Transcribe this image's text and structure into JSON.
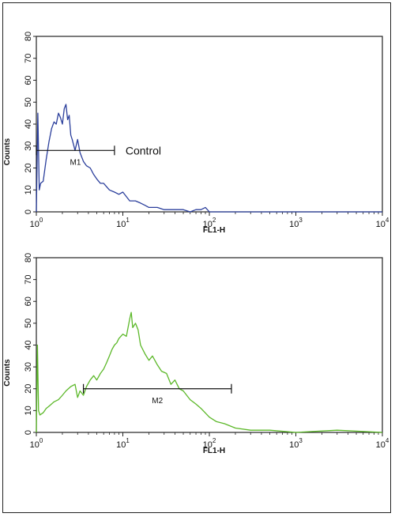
{
  "chart_data": [
    {
      "type": "line",
      "ylabel": "Counts",
      "xlabel": "FL1-H",
      "xscale": "log",
      "xlim": [
        1,
        10000
      ],
      "ylim": [
        0,
        80
      ],
      "xticks": [
        {
          "base": "10",
          "exp": "0"
        },
        {
          "base": "10",
          "exp": "1"
        },
        {
          "base": "10",
          "exp": "2"
        },
        {
          "base": "10",
          "exp": "3"
        },
        {
          "base": "10",
          "exp": "4"
        }
      ],
      "yticks": [
        "0",
        "10",
        "20",
        "30",
        "40",
        "50",
        "60",
        "70",
        "80"
      ],
      "color": "#2b3f9c",
      "series": [
        {
          "x": [
            1.0,
            1.04,
            1.08,
            1.12,
            1.2,
            1.3,
            1.4,
            1.5,
            1.6,
            1.7,
            1.8,
            1.9,
            2.0,
            2.1,
            2.2,
            2.3,
            2.4,
            2.5,
            2.6,
            2.8,
            3.0,
            3.2,
            3.5,
            3.8,
            4.2,
            4.6,
            5.0,
            5.5,
            6.0,
            7.0,
            8.0,
            9.0,
            10,
            12,
            14,
            16,
            18,
            20,
            25,
            30,
            40,
            50,
            60,
            70,
            80,
            90,
            100,
            150,
            200,
            500,
            1000,
            10000
          ],
          "y": [
            0,
            45,
            10,
            13,
            14,
            24,
            32,
            38,
            41,
            40,
            45,
            43,
            40,
            47,
            49,
            42,
            44,
            35,
            33,
            28,
            33,
            27,
            23,
            21,
            20,
            17,
            15,
            13,
            13,
            10,
            9,
            8,
            9,
            5,
            5,
            4,
            3,
            2,
            2,
            1,
            1,
            1,
            0,
            1,
            1,
            2,
            0,
            0,
            0,
            0,
            0,
            0
          ]
        }
      ],
      "marker": {
        "label": "M1",
        "x_start": 1.0,
        "x_end": 8.0,
        "y": 28
      },
      "annotation": "Control"
    },
    {
      "type": "line",
      "ylabel": "Counts",
      "xlabel": "FL1-H",
      "xscale": "log",
      "xlim": [
        1,
        10000
      ],
      "ylim": [
        0,
        80
      ],
      "xticks": [
        {
          "base": "10",
          "exp": "0"
        },
        {
          "base": "10",
          "exp": "1"
        },
        {
          "base": "10",
          "exp": "2"
        },
        {
          "base": "10",
          "exp": "3"
        },
        {
          "base": "10",
          "exp": "4"
        }
      ],
      "yticks": [
        "0",
        "10",
        "20",
        "30",
        "40",
        "50",
        "60",
        "70",
        "80"
      ],
      "color": "#5cb829",
      "series": [
        {
          "x": [
            1.0,
            1.03,
            1.06,
            1.1,
            1.2,
            1.3,
            1.4,
            1.6,
            1.8,
            2.0,
            2.2,
            2.5,
            2.8,
            3.0,
            3.2,
            3.5,
            3.8,
            4.2,
            4.6,
            5.0,
            5.5,
            6.0,
            6.5,
            7.0,
            7.5,
            8.0,
            8.5,
            9.0,
            10,
            11,
            12,
            12.5,
            13,
            14,
            15,
            16,
            18,
            20,
            22,
            25,
            28,
            32,
            36,
            40,
            45,
            50,
            60,
            70,
            80,
            100,
            120,
            150,
            200,
            300,
            500,
            1000,
            3000,
            10000
          ],
          "y": [
            0,
            40,
            10,
            8,
            9,
            11,
            12,
            14,
            15,
            17,
            19,
            21,
            22,
            16,
            19,
            17,
            21,
            24,
            26,
            24,
            27,
            29,
            32,
            35,
            38,
            40,
            41,
            43,
            45,
            44,
            52,
            55,
            48,
            50,
            47,
            40,
            36,
            33,
            35,
            31,
            28,
            27,
            22,
            24,
            20,
            19,
            15,
            13,
            11,
            7,
            5,
            4,
            2,
            1,
            1,
            0,
            1,
            0
          ]
        }
      ],
      "marker": {
        "label": "M2",
        "x_start": 3.5,
        "x_end": 180,
        "y": 20
      }
    }
  ]
}
